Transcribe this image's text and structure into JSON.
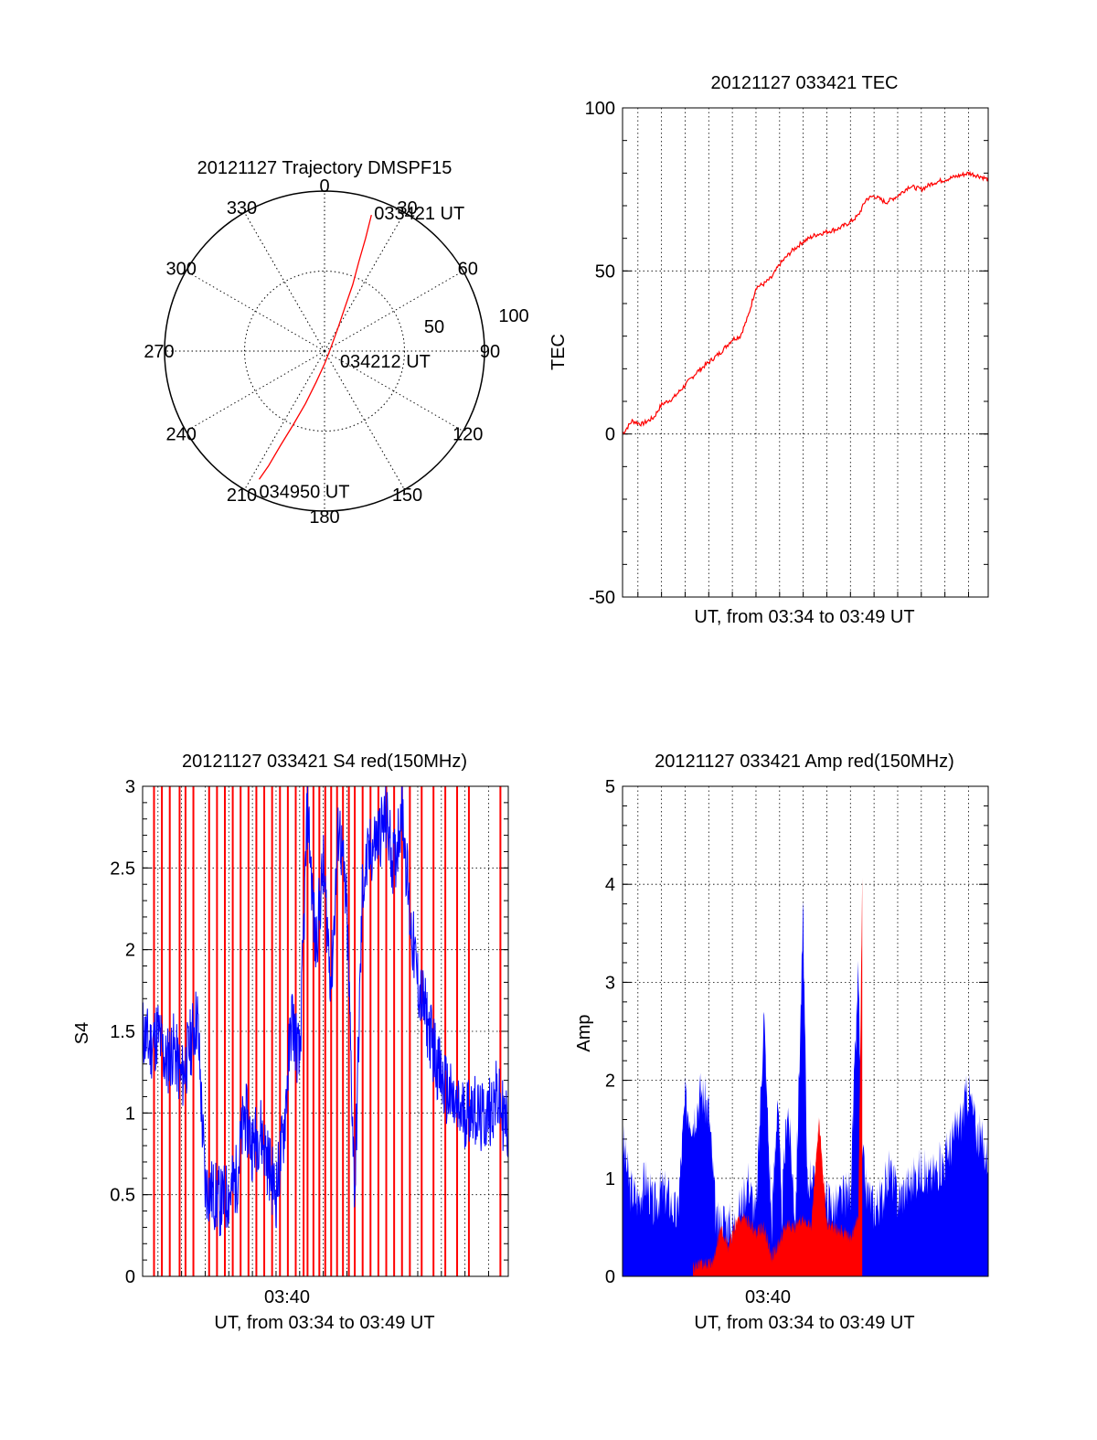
{
  "colors": {
    "red": "#ff0000",
    "blue": "#0000ff",
    "grid": "#000000"
  },
  "chart_data": [
    {
      "type": "polar",
      "title": "20121127 Trajectory DMSPF15",
      "angle_labels": [
        "0",
        "30",
        "60",
        "90",
        "120",
        "150",
        "180",
        "210",
        "240",
        "270",
        "300",
        "330"
      ],
      "radial_labels": [
        "50",
        "100"
      ],
      "rlim": [
        0,
        100
      ],
      "grid": true,
      "series": [
        {
          "color": "red",
          "points": [
            {
              "az": 19,
              "r": 90
            },
            {
              "az": 20,
              "r": 75
            },
            {
              "az": 21,
              "r": 60
            },
            {
              "az": 23,
              "r": 45
            },
            {
              "az": 25,
              "r": 30
            },
            {
              "az": 30,
              "r": 17
            },
            {
              "az": 45,
              "r": 7
            },
            {
              "az": 110,
              "r": 3
            },
            {
              "az": 180,
              "r": 8
            },
            {
              "az": 195,
              "r": 20
            },
            {
              "az": 200,
              "r": 35
            },
            {
              "az": 203,
              "r": 50
            },
            {
              "az": 205,
              "r": 65
            },
            {
              "az": 206,
              "r": 80
            },
            {
              "az": 207,
              "r": 90
            }
          ]
        }
      ],
      "annotations": [
        {
          "text": "033421 UT",
          "az": 19,
          "r": 90
        },
        {
          "text": "034212 UT",
          "az": 110,
          "r": 3
        },
        {
          "text": "034950 UT",
          "az": 207,
          "r": 90
        }
      ]
    },
    {
      "type": "line",
      "title": "20121127 033421 TEC",
      "xlabel": "UT, from 03:34 to 03:49 UT",
      "ylabel": "TEC",
      "xlim": [
        "03:34:21",
        "03:49:50"
      ],
      "ylim": [
        -50,
        100
      ],
      "yticks": [
        "100",
        "50",
        "0",
        "-50"
      ],
      "grid": true,
      "series": [
        {
          "color": "red",
          "x": [
            "03:34:21",
            "03:34:45",
            "03:35:10",
            "03:35:40",
            "03:36:00",
            "03:36:30",
            "03:37:00",
            "03:37:30",
            "03:38:00",
            "03:38:30",
            "03:39:00",
            "03:39:20",
            "03:39:40",
            "03:40:00",
            "03:40:20",
            "03:40:40",
            "03:41:00",
            "03:41:30",
            "03:42:00",
            "03:42:30",
            "03:43:00",
            "03:43:30",
            "03:44:00",
            "03:44:20",
            "03:44:40",
            "03:45:00",
            "03:45:30",
            "03:46:00",
            "03:46:30",
            "03:47:00",
            "03:47:30",
            "03:48:00",
            "03:48:30",
            "03:49:00",
            "03:49:30",
            "03:49:50"
          ],
          "y": [
            0,
            4,
            3,
            5,
            9,
            11,
            15,
            19,
            22,
            25,
            29,
            30,
            36,
            45,
            46,
            48,
            52,
            56,
            59,
            61,
            62,
            63,
            65,
            67,
            72,
            73,
            71,
            73,
            76,
            75,
            77,
            78,
            79,
            80,
            79,
            78
          ]
        }
      ]
    },
    {
      "type": "line",
      "title": "20121127 033421 S4 red(150MHz)",
      "xlabel": "UT, from 03:34 to 03:49 UT",
      "ylabel": "S4",
      "xlim": [
        "03:34:21",
        "03:49:50"
      ],
      "xticks": [
        "03:40"
      ],
      "ylim": [
        0,
        3
      ],
      "yticks": [
        "3",
        "2.5",
        "2",
        "1.5",
        "1",
        "0.5",
        "0"
      ],
      "grid": true,
      "series": [
        {
          "color": "blue",
          "x": [
            "03:34:21",
            "03:34:40",
            "03:35:00",
            "03:35:20",
            "03:35:40",
            "03:36:00",
            "03:36:20",
            "03:36:40",
            "03:37:00",
            "03:37:20",
            "03:37:40",
            "03:38:00",
            "03:38:20",
            "03:38:40",
            "03:39:00",
            "03:39:20",
            "03:39:40",
            "03:40:00",
            "03:40:20",
            "03:40:40",
            "03:41:00",
            "03:41:20",
            "03:41:40",
            "03:42:00",
            "03:42:20",
            "03:42:40",
            "03:43:00",
            "03:43:20",
            "03:43:40",
            "03:44:00",
            "03:44:20",
            "03:44:40",
            "03:45:00",
            "03:45:20",
            "03:45:40",
            "03:46:00",
            "03:46:20",
            "03:46:40",
            "03:47:00",
            "03:47:20",
            "03:47:40",
            "03:48:00",
            "03:48:20",
            "03:48:40",
            "03:49:00",
            "03:49:20",
            "03:49:50"
          ],
          "y": [
            1.5,
            1.4,
            1.5,
            1.3,
            1.4,
            1.2,
            1.4,
            1.6,
            0.55,
            0.5,
            0.45,
            0.5,
            0.6,
            1.0,
            0.8,
            0.9,
            0.7,
            0.5,
            0.9,
            1.6,
            1.3,
            2.9,
            2.0,
            2.5,
            1.8,
            2.8,
            2.2,
            0.5,
            2.4,
            2.6,
            2.7,
            2.8,
            2.5,
            2.9,
            2.2,
            1.8,
            1.6,
            1.4,
            1.2,
            1.1,
            1.0,
            1.0,
            1.05,
            0.95,
            1.0,
            1.1,
            0.9
          ]
        }
      ],
      "red_spikes": [
        "03:34:50",
        "03:35:10",
        "03:35:30",
        "03:35:55",
        "03:36:10",
        "03:36:30",
        "03:37:10",
        "03:37:30",
        "03:37:50",
        "03:38:10",
        "03:38:30",
        "03:38:50",
        "03:39:10",
        "03:39:30",
        "03:39:50",
        "03:40:10",
        "03:40:30",
        "03:40:50",
        "03:41:10",
        "03:41:20",
        "03:41:35",
        "03:41:50",
        "03:42:05",
        "03:42:20",
        "03:42:35",
        "03:42:50",
        "03:43:05",
        "03:43:20",
        "03:43:40",
        "03:44:00",
        "03:44:20",
        "03:44:40",
        "03:45:00",
        "03:45:20",
        "03:45:40",
        "03:46:10",
        "03:46:40",
        "03:47:10",
        "03:47:40",
        "03:48:10",
        "03:49:30"
      ]
    },
    {
      "type": "area",
      "title": "20121127 033421 Amp red(150MHz)",
      "xlabel": "UT, from 03:34 to 03:49 UT",
      "ylabel": "Amp",
      "xlim": [
        "03:34:21",
        "03:49:50"
      ],
      "xticks": [
        "03:40"
      ],
      "ylim": [
        0,
        5
      ],
      "yticks": [
        "5",
        "4",
        "3",
        "2",
        "1",
        "0"
      ],
      "grid": true,
      "series": [
        {
          "color": "blue",
          "x": [
            "03:34:21",
            "03:34:40",
            "03:35:00",
            "03:35:20",
            "03:35:40",
            "03:36:00",
            "03:36:20",
            "03:36:40",
            "03:37:00",
            "03:37:20",
            "03:37:40",
            "03:38:00",
            "03:38:20",
            "03:38:40",
            "03:39:00",
            "03:39:20",
            "03:39:40",
            "03:40:00",
            "03:40:20",
            "03:40:40",
            "03:40:55",
            "03:41:05",
            "03:41:20",
            "03:41:40",
            "03:42:00",
            "03:42:10",
            "03:42:20",
            "03:42:40",
            "03:43:00",
            "03:43:20",
            "03:43:40",
            "03:44:00",
            "03:44:20",
            "03:44:30",
            "03:44:40",
            "03:45:00",
            "03:45:20",
            "03:45:40",
            "03:46:00",
            "03:46:20",
            "03:46:40",
            "03:47:00",
            "03:47:20",
            "03:47:40",
            "03:48:00",
            "03:48:20",
            "03:48:40",
            "03:49:00",
            "03:49:20",
            "03:49:50"
          ],
          "y": [
            1.4,
            0.9,
            0.8,
            1.0,
            0.7,
            0.9,
            0.8,
            0.6,
            1.8,
            1.6,
            1.9,
            1.7,
            0.5,
            0.6,
            0.5,
            0.7,
            1.0,
            0.6,
            2.7,
            0.5,
            1.9,
            0.6,
            1.8,
            0.6,
            3.7,
            0.9,
            1.1,
            0.6,
            0.8,
            0.7,
            0.8,
            0.9,
            3.1,
            1.2,
            0.9,
            0.7,
            0.8,
            1.1,
            0.8,
            0.9,
            1.0,
            1.1,
            1.0,
            1.1,
            1.2,
            1.4,
            1.6,
            1.9,
            1.5,
            1.2
          ]
        },
        {
          "color": "red",
          "x": [
            "03:37:20",
            "03:38:10",
            "03:38:30",
            "03:38:50",
            "03:39:10",
            "03:39:30",
            "03:40:00",
            "03:40:20",
            "03:40:40",
            "03:41:00",
            "03:41:20",
            "03:41:40",
            "03:42:00",
            "03:42:20",
            "03:42:40",
            "03:43:00",
            "03:43:20",
            "03:43:40",
            "03:44:00",
            "03:44:20",
            "03:44:30"
          ],
          "y": [
            0.1,
            0.15,
            0.5,
            0.3,
            0.55,
            0.6,
            0.45,
            0.5,
            0.2,
            0.35,
            0.55,
            0.5,
            0.6,
            0.5,
            1.6,
            0.55,
            0.5,
            0.45,
            0.4,
            0.6,
            4.1
          ]
        }
      ]
    }
  ]
}
